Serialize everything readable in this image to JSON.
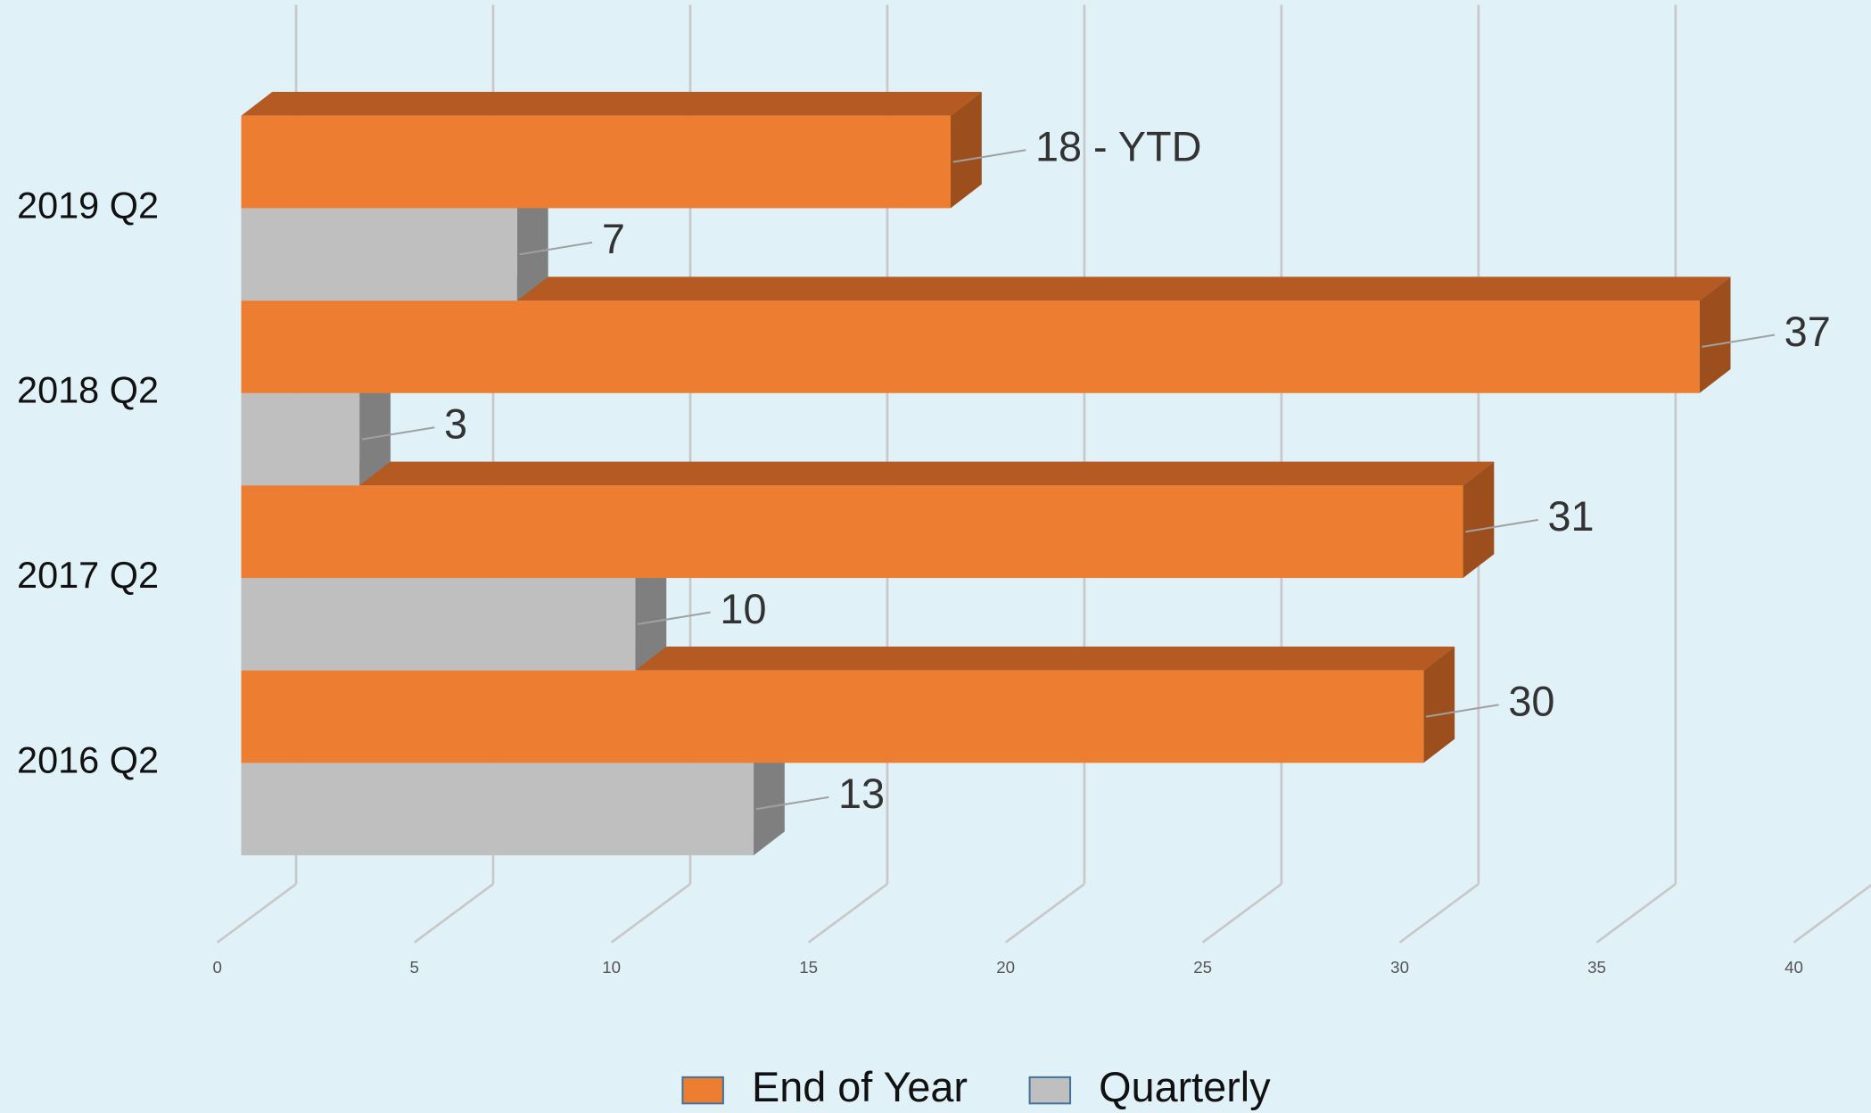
{
  "chart_data": {
    "type": "bar3d_horizontal",
    "categories": [
      "2016 Q2",
      "2017 Q2",
      "2018 Q2",
      "2019 Q2"
    ],
    "series": [
      {
        "name": "End of Year",
        "color": "#ed7d31",
        "values": [
          30,
          31,
          37,
          18
        ],
        "value_labels": [
          "30",
          "31",
          "37",
          "18 - YTD"
        ]
      },
      {
        "name": "Quarterly",
        "color": "#bfbfbf",
        "values": [
          13,
          10,
          3,
          7
        ]
      }
    ],
    "xlim": [
      0,
      40
    ],
    "xticks": [
      0,
      5,
      10,
      15,
      20,
      25,
      30,
      35,
      40
    ],
    "grid": true,
    "legend": "bottom"
  }
}
